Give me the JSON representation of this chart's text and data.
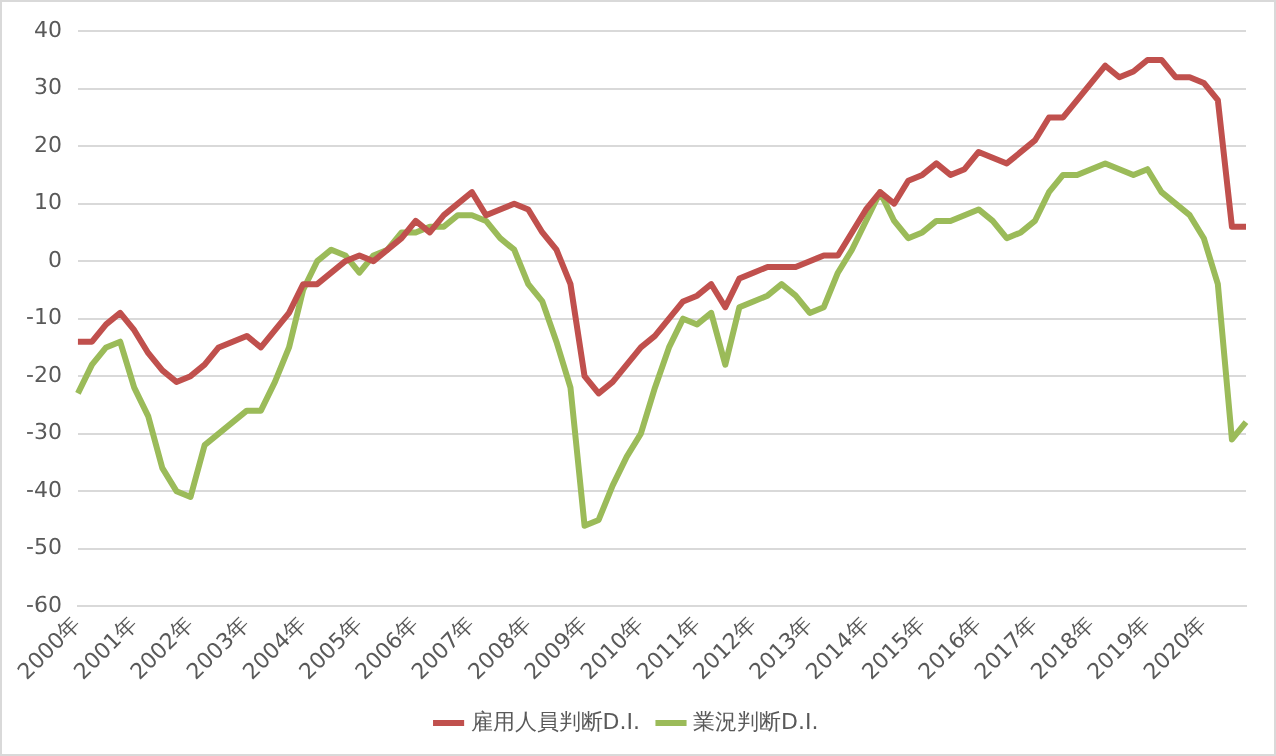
{
  "chart_data": {
    "type": "line",
    "categories": [
      "2000年",
      null,
      null,
      null,
      "2001年",
      null,
      null,
      null,
      "2002年",
      null,
      null,
      null,
      "2003年",
      null,
      null,
      null,
      "2004年",
      null,
      null,
      null,
      "2005年",
      null,
      null,
      null,
      "2006年",
      null,
      null,
      null,
      "2007年",
      null,
      null,
      null,
      "2008年",
      null,
      null,
      null,
      "2009年",
      null,
      null,
      null,
      "2010年",
      null,
      null,
      null,
      "2011年",
      null,
      null,
      null,
      "2012年",
      null,
      null,
      null,
      "2013年",
      null,
      null,
      null,
      "2014年",
      null,
      null,
      null,
      "2015年",
      null,
      null,
      null,
      "2016年",
      null,
      null,
      null,
      "2017年",
      null,
      null,
      null,
      "2018年",
      null,
      null,
      null,
      "2019年",
      null,
      null,
      null,
      "2020年",
      null,
      null,
      null
    ],
    "series": [
      {
        "name": "雇用人員判断D.I.",
        "color": "#c0504d",
        "values": [
          -14,
          -14,
          -11,
          -9,
          -12,
          -16,
          -19,
          -21,
          -20,
          -18,
          -15,
          -14,
          -13,
          -15,
          -12,
          -9,
          -4,
          -4,
          -2,
          0,
          1,
          0,
          2,
          4,
          7,
          5,
          8,
          10,
          12,
          8,
          9,
          10,
          9,
          5,
          2,
          -4,
          -20,
          -23,
          -21,
          -18,
          -15,
          -13,
          -10,
          -7,
          -6,
          -4,
          -8,
          -3,
          -2,
          -1,
          -1,
          -1,
          0,
          1,
          1,
          5,
          9,
          12,
          10,
          14,
          15,
          17,
          15,
          16,
          19,
          18,
          17,
          19,
          21,
          25,
          25,
          28,
          31,
          34,
          32,
          33,
          35,
          35,
          32,
          32,
          31,
          28,
          6,
          6
        ]
      },
      {
        "name": "業況判断D.I.",
        "color": "#9bbb59",
        "values": [
          -23,
          -18,
          -15,
          -14,
          -22,
          -27,
          -36,
          -40,
          -41,
          -32,
          -30,
          -28,
          -26,
          -26,
          -21,
          -15,
          -5,
          0,
          2,
          1,
          -2,
          1,
          2,
          5,
          5,
          6,
          6,
          8,
          8,
          7,
          4,
          2,
          -4,
          -7,
          -14,
          -22,
          -46,
          -45,
          -39,
          -34,
          -30,
          -22,
          -15,
          -10,
          -11,
          -9,
          -18,
          -8,
          -7,
          -6,
          -4,
          -6,
          -9,
          -8,
          -2,
          2,
          7,
          12,
          7,
          4,
          5,
          7,
          7,
          8,
          9,
          7,
          4,
          5,
          7,
          12,
          15,
          15,
          16,
          17,
          16,
          15,
          16,
          12,
          10,
          8,
          4,
          -4,
          -31,
          -28
        ]
      }
    ],
    "ylim": [
      -60,
      40
    ],
    "yticks": [
      -60,
      -50,
      -40,
      -30,
      -20,
      -10,
      0,
      10,
      20,
      30,
      40
    ],
    "grid": "y",
    "legend": "bottom",
    "marker": "none",
    "line_style": "solid"
  }
}
